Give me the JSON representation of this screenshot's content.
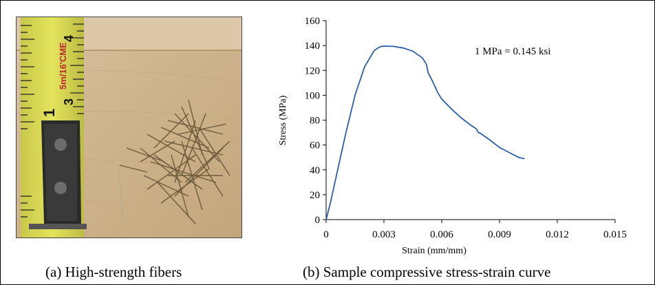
{
  "captions": {
    "a": "(a) High-strength fibers",
    "b": "(b) Sample compressive stress-strain curve"
  },
  "photo": {
    "tape_text": "5m/16'CME",
    "tape_numbers": [
      "4",
      "3",
      "1",
      "1"
    ]
  },
  "chart_data": {
    "type": "line",
    "title": "",
    "xlabel": "Strain (mm/mm)",
    "ylabel": "Stress (MPa)",
    "xlim": [
      0,
      0.015
    ],
    "ylim": [
      0,
      160
    ],
    "x_ticks": [
      0,
      0.003,
      0.006,
      0.009,
      0.012,
      0.015
    ],
    "x_tick_labels": [
      "0",
      "0.003",
      "0.006",
      "0.009",
      "0.012",
      "0.015"
    ],
    "y_ticks": [
      0,
      20,
      40,
      60,
      80,
      100,
      120,
      140,
      160
    ],
    "y_tick_labels": [
      "0",
      "20",
      "40",
      "60",
      "80",
      "100",
      "120",
      "140",
      "160"
    ],
    "grid": false,
    "legend": "none",
    "annotation": "1 MPa = 0.145 ksi",
    "series": [
      {
        "color": "#2a5caa",
        "x": [
          0,
          0.0002,
          0.0005,
          0.001,
          0.0015,
          0.002,
          0.0025,
          0.0028,
          0.003,
          0.0035,
          0.004,
          0.0045,
          0.005,
          0.0052,
          0.0053,
          0.0055,
          0.0058,
          0.006,
          0.0065,
          0.007,
          0.0075,
          0.0078,
          0.0079,
          0.008,
          0.0085,
          0.009,
          0.0095,
          0.01,
          0.0103
        ],
        "y": [
          0,
          12,
          33,
          68,
          100,
          123,
          136,
          139,
          139.5,
          139.3,
          138,
          135.5,
          130,
          125,
          118,
          112,
          102,
          97,
          89,
          82,
          76,
          73,
          70,
          69.5,
          64,
          58,
          54,
          50,
          49
        ]
      }
    ]
  }
}
